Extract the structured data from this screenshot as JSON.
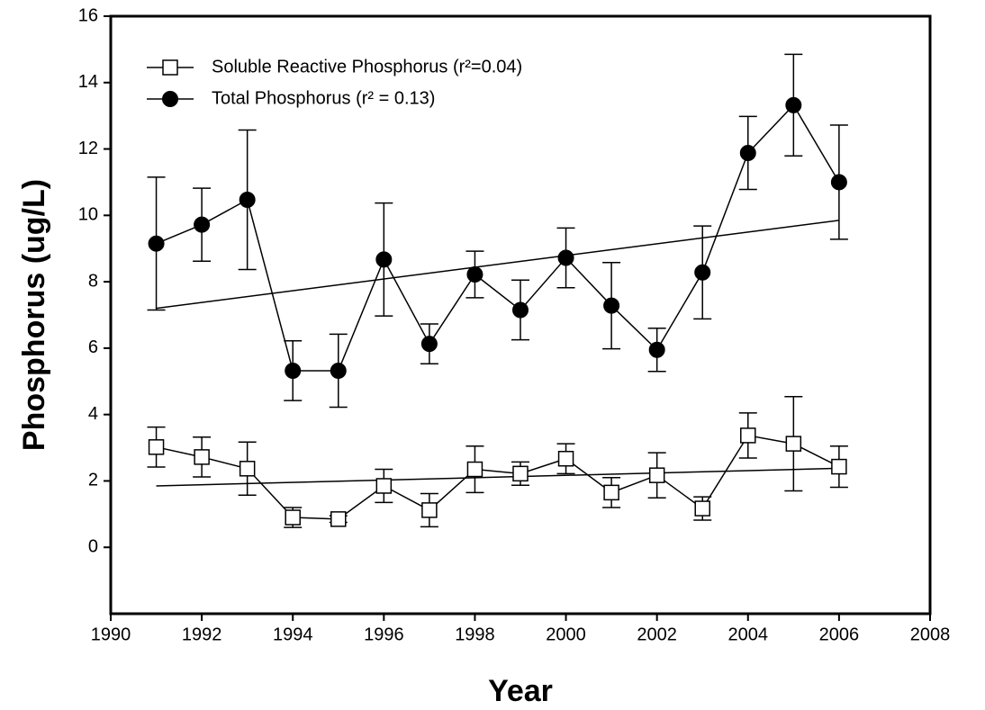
{
  "chart_data": {
    "type": "line",
    "x_label": "Year",
    "y_label": "Phosphorus (ug/L)",
    "x": [
      1991,
      1992,
      1993,
      1994,
      1995,
      1996,
      1997,
      1998,
      1999,
      2000,
      2001,
      2002,
      2003,
      2004,
      2005,
      2006
    ],
    "xlim": [
      1990,
      2008
    ],
    "xticks": [
      1990,
      1992,
      1994,
      1996,
      1998,
      2000,
      2002,
      2004,
      2006,
      2008
    ],
    "ylim": [
      -2,
      16
    ],
    "yticks": [
      0,
      2,
      4,
      6,
      8,
      10,
      12,
      14,
      16
    ],
    "legend": "top-left",
    "series": [
      {
        "name": "Soluble Reactive Phosphorus (r²=0.04)",
        "color": "#000000",
        "marker": "open-square",
        "values": [
          3.02,
          2.72,
          2.37,
          0.9,
          0.85,
          1.85,
          1.12,
          2.35,
          2.22,
          2.67,
          1.65,
          2.17,
          1.17,
          3.37,
          3.12,
          2.43
        ],
        "errors": [
          0.6,
          0.6,
          0.8,
          0.3,
          0.1,
          0.5,
          0.5,
          0.7,
          0.35,
          0.45,
          0.45,
          0.68,
          0.35,
          0.68,
          1.42,
          0.62
        ],
        "trend": {
          "x": [
            1991,
            2006
          ],
          "values": [
            1.85,
            2.38
          ]
        }
      },
      {
        "name": "Total Phosphorus (r² = 0.13)",
        "color": "#000000",
        "marker": "filled-circle",
        "values": [
          9.15,
          9.72,
          10.47,
          5.32,
          5.32,
          8.67,
          6.13,
          8.22,
          7.15,
          8.72,
          7.28,
          5.95,
          8.28,
          11.88,
          13.32,
          11.0
        ],
        "errors": [
          2.0,
          1.1,
          2.1,
          0.9,
          1.1,
          1.7,
          0.6,
          0.7,
          0.9,
          0.9,
          1.3,
          0.65,
          1.4,
          1.1,
          1.53,
          1.72
        ],
        "trend": {
          "x": [
            1991,
            2006
          ],
          "values": [
            7.2,
            9.85
          ]
        }
      }
    ]
  }
}
